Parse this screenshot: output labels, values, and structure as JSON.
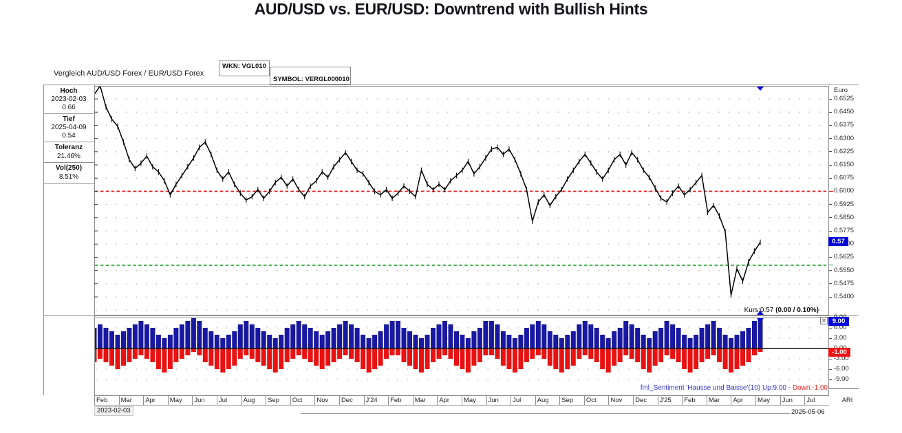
{
  "page_title": "AUD/USD vs. EUR/USD: Downtrend with Bullish Hints",
  "header": {
    "instrument_label": "Vergleich AUD/USD Forex / EUR/USD Forex",
    "wkn_label": "WKN: VGL010",
    "symbol_label": "SYMBOL: VERGL000010"
  },
  "info_panel": {
    "sections": [
      {
        "label": "Hoch",
        "lines": [
          "2023-02-03",
          "0.66"
        ]
      },
      {
        "label": "Tief",
        "lines": [
          "2025-04-09",
          "0.54"
        ]
      },
      {
        "label": "Toleranz",
        "lines": [
          "21.46%"
        ]
      },
      {
        "label": "Vol(250)",
        "lines": [
          "8.51%"
        ]
      }
    ]
  },
  "kurs": {
    "prefix": "Kurs:0.57 ",
    "change": "(0.00 / 0.10%)"
  },
  "sentiment_caption": {
    "blue_part": "fml_Sentiment 'Hausse und Baisse'(10) Up:9.00 - ",
    "red_part": "Down:-1.00"
  },
  "footer": {
    "start_date": "2023-02-03",
    "end_date": "2025-05-06",
    "right_label": "ARI"
  },
  "colors": {
    "price_line": "#000000",
    "resistance_line": "#ee2222",
    "support_line": "#18a428",
    "up_bar": "#1818a0",
    "down_bar": "#e81212",
    "badge_blue": "#0000d8",
    "badge_red": "#ee1111",
    "caption_blue": "#3333cc",
    "caption_red": "#ee2222",
    "grid_dot": "#b9b9b9",
    "border": "#8f8f8f"
  },
  "chart_data": [
    {
      "type": "line",
      "title": "Vergleich AUD/USD Forex / EUR/USD Forex",
      "ylabel": "Euro",
      "x_start_date": "2023-02-03",
      "x_end_date": "2025-05-06",
      "x_axis_months": [
        "Feb",
        "Mar",
        "Apr",
        "May",
        "Jun",
        "Jul",
        "Aug",
        "Sep",
        "Oct",
        "Nov",
        "Dec",
        "J'24",
        "Feb",
        "Mar",
        "Apr",
        "May",
        "Jun",
        "Jul",
        "Aug",
        "Sep",
        "Oct",
        "Nov",
        "Dec",
        "J'25",
        "Feb",
        "Mar",
        "Apr",
        "May",
        "Jun",
        "Jul"
      ],
      "yticks": [
        "0.6525",
        "0.6450",
        "0.6375",
        "0.6300",
        "0.6225",
        "0.6150",
        "0.6075",
        "0.6000",
        "0.5925",
        "0.5850",
        "0.5775",
        "0.5700",
        "0.5625",
        "0.5550",
        "0.5475",
        "0.5400"
      ],
      "ylim": [
        0.5355,
        0.6565
      ],
      "hlines": [
        {
          "value": 0.6,
          "color": "#ee2222",
          "role": "resistance"
        },
        {
          "value": 0.558,
          "color": "#18a428",
          "role": "support"
        }
      ],
      "high": {
        "date": "2023-02-03",
        "value": 0.66
      },
      "low": {
        "date": "2025-04-09",
        "value": 0.54
      },
      "last_price": 0.571,
      "last_price_label": "0.57",
      "change_label": "(0.00 / 0.10%)",
      "note": "weekly samples estimated from chart pixels",
      "values": [
        0.655,
        0.66,
        0.648,
        0.641,
        0.637,
        0.628,
        0.618,
        0.613,
        0.616,
        0.62,
        0.614,
        0.611,
        0.606,
        0.598,
        0.604,
        0.609,
        0.614,
        0.619,
        0.625,
        0.628,
        0.621,
        0.612,
        0.607,
        0.611,
        0.604,
        0.599,
        0.595,
        0.597,
        0.601,
        0.596,
        0.6,
        0.605,
        0.608,
        0.603,
        0.607,
        0.601,
        0.597,
        0.603,
        0.606,
        0.611,
        0.608,
        0.614,
        0.618,
        0.622,
        0.617,
        0.612,
        0.61,
        0.605,
        0.6,
        0.598,
        0.601,
        0.596,
        0.599,
        0.603,
        0.6,
        0.597,
        0.612,
        0.604,
        0.601,
        0.604,
        0.601,
        0.606,
        0.609,
        0.612,
        0.617,
        0.61,
        0.614,
        0.619,
        0.624,
        0.625,
        0.621,
        0.624,
        0.618,
        0.61,
        0.601,
        0.583,
        0.594,
        0.598,
        0.592,
        0.597,
        0.601,
        0.607,
        0.612,
        0.617,
        0.621,
        0.616,
        0.611,
        0.607,
        0.612,
        0.618,
        0.621,
        0.615,
        0.622,
        0.618,
        0.612,
        0.608,
        0.602,
        0.596,
        0.594,
        0.599,
        0.603,
        0.598,
        0.601,
        0.605,
        0.609,
        0.588,
        0.592,
        0.586,
        0.577,
        0.541,
        0.556,
        0.549,
        0.56,
        0.566,
        0.571
      ]
    },
    {
      "type": "bar",
      "title": "fml_Sentiment 'Hausse und Baisse'(10)",
      "current_up": 9.0,
      "current_down": -1.0,
      "current_up_label": "9.00",
      "current_down_label": "-1.00",
      "yticks": [
        "9.00",
        "6.00",
        "3.00",
        "0.00",
        "-3.00",
        "-6.00",
        "-9.00"
      ],
      "ylim": [
        -10,
        10
      ],
      "series": [
        {
          "name": "Up",
          "color": "#1818a0",
          "values": [
            6,
            7,
            6,
            5,
            4,
            5,
            6,
            7,
            8,
            7,
            6,
            4,
            3,
            4,
            6,
            7,
            8,
            9,
            8,
            6,
            5,
            4,
            3,
            4,
            5,
            7,
            8,
            7,
            6,
            5,
            4,
            3,
            4,
            6,
            7,
            8,
            7,
            6,
            5,
            4,
            5,
            6,
            7,
            8,
            7,
            6,
            4,
            3,
            4,
            5,
            7,
            8,
            8,
            6,
            5,
            4,
            3,
            4,
            6,
            7,
            8,
            7,
            5,
            4,
            3,
            5,
            6,
            8,
            8,
            7,
            5,
            4,
            3,
            4,
            6,
            7,
            8,
            7,
            5,
            4,
            3,
            4,
            5,
            7,
            8,
            7,
            6,
            4,
            3,
            5,
            6,
            8,
            7,
            6,
            4,
            3,
            5,
            6,
            8,
            7,
            6,
            4,
            3,
            4,
            6,
            7,
            8,
            6,
            4,
            3,
            4,
            5,
            6,
            8,
            9
          ]
        },
        {
          "name": "Down",
          "color": "#e81212",
          "values": [
            -4,
            -3,
            -4,
            -5,
            -6,
            -5,
            -4,
            -3,
            -2,
            -3,
            -4,
            -6,
            -7,
            -6,
            -4,
            -3,
            -2,
            -1,
            -2,
            -4,
            -5,
            -6,
            -7,
            -6,
            -5,
            -3,
            -2,
            -3,
            -4,
            -5,
            -6,
            -7,
            -6,
            -4,
            -3,
            -2,
            -3,
            -4,
            -5,
            -6,
            -5,
            -4,
            -3,
            -2,
            -3,
            -4,
            -6,
            -7,
            -6,
            -5,
            -3,
            -2,
            -2,
            -4,
            -5,
            -6,
            -7,
            -6,
            -4,
            -3,
            -2,
            -3,
            -5,
            -6,
            -7,
            -5,
            -4,
            -2,
            -2,
            -3,
            -5,
            -6,
            -7,
            -6,
            -4,
            -3,
            -2,
            -3,
            -5,
            -6,
            -7,
            -6,
            -5,
            -3,
            -2,
            -3,
            -4,
            -6,
            -7,
            -5,
            -4,
            -2,
            -3,
            -4,
            -6,
            -7,
            -5,
            -4,
            -2,
            -3,
            -4,
            -6,
            -7,
            -6,
            -4,
            -3,
            -2,
            -4,
            -6,
            -7,
            -6,
            -5,
            -4,
            -2,
            -1
          ]
        }
      ]
    }
  ]
}
